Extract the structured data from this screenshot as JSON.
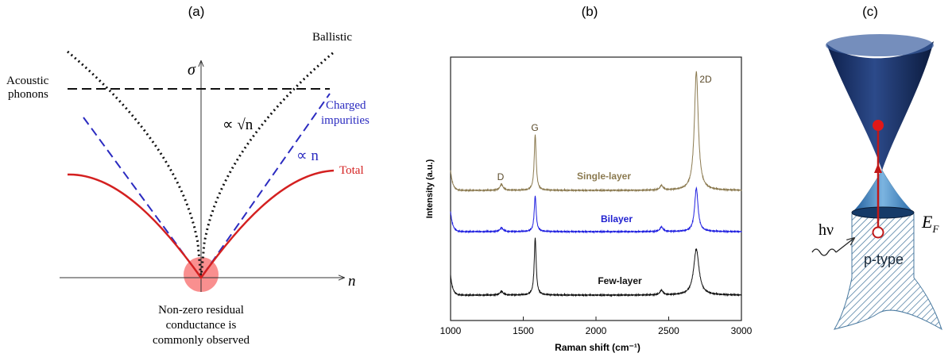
{
  "panel_a": {
    "label": "(a)",
    "y_axis": "σ",
    "x_axis": "n",
    "acoustic": [
      "Acoustic",
      "phonons"
    ],
    "ballistic": "Ballistic",
    "charged": [
      "Charged",
      "impurities"
    ],
    "total": "Total",
    "sqrt_law": "∝ √n",
    "linear_law": "∝ n",
    "note": [
      "Non-zero residual",
      "conductance is",
      "commonly observed"
    ]
  },
  "panel_b": {
    "label": "(b)",
    "y_label": "Intensity (a.u.)",
    "x_label": "Raman shift (cm⁻¹)",
    "xlim": [
      1000,
      3000
    ],
    "xticks": [
      1000,
      1500,
      2000,
      2500,
      3000
    ],
    "peaks": {
      "d": "D",
      "g": "G",
      "two_d": "2D"
    },
    "spectra": [
      "Single-layer",
      "Bilayer",
      "Few-layer"
    ]
  },
  "panel_c": {
    "label": "(c)",
    "photon": "hν",
    "fermi": {
      "symbol": "E",
      "subscript": "F"
    },
    "doping": "p-type"
  }
}
